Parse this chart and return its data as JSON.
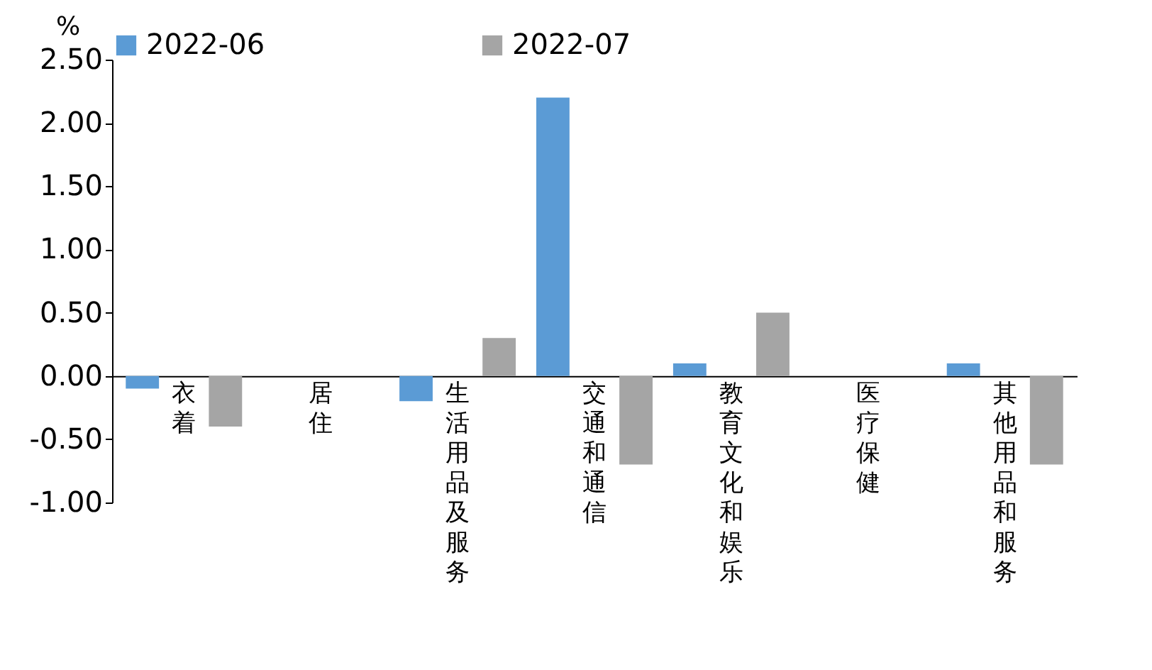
{
  "chart_data": {
    "type": "bar",
    "ylabel": "%",
    "categories": [
      "衣着",
      "居住",
      "生活用品及服务",
      "交通和通信",
      "教育文化和娱乐",
      "医疗保健",
      "其他用品和服务"
    ],
    "series": [
      {
        "name": "2022-06",
        "color": "#5b9bd5",
        "values": [
          -0.1,
          0,
          -0.2,
          2.2,
          0.1,
          0,
          0.1
        ]
      },
      {
        "name": "2022-07",
        "color": "#a5a5a5",
        "values": [
          -0.4,
          0,
          0.3,
          -0.7,
          0.5,
          0,
          -0.7
        ]
      }
    ],
    "ylim": [
      -1,
      2.5
    ],
    "yticks": [
      {
        "value": -1,
        "label": "-1.00"
      },
      {
        "value": -0.5,
        "label": "-0.50"
      },
      {
        "value": 0,
        "label": "0.00"
      },
      {
        "value": 0.5,
        "label": "0.50"
      },
      {
        "value": 1,
        "label": "1.00"
      },
      {
        "value": 1.5,
        "label": "1.50"
      },
      {
        "value": 2,
        "label": "2.00"
      },
      {
        "value": 2.5,
        "label": "2.50"
      }
    ],
    "grid": false,
    "legend": "top"
  }
}
